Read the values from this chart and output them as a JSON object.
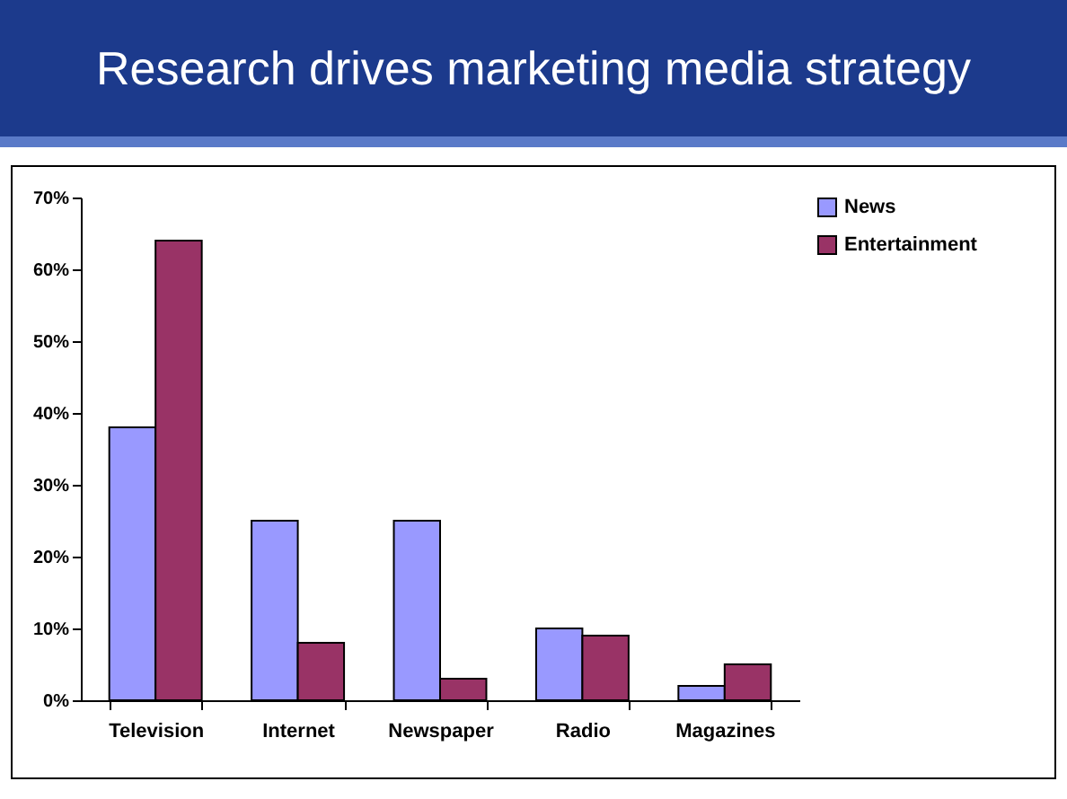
{
  "chart_data": {
    "type": "bar",
    "title": "Research drives marketing media strategy",
    "categories": [
      "Television",
      "Internet",
      "Newspaper",
      "Radio",
      "Magazines"
    ],
    "series": [
      {
        "name": "News",
        "color": "#9999ff",
        "values": [
          38,
          25,
          25,
          10,
          2
        ]
      },
      {
        "name": "Entertainment",
        "color": "#993366",
        "values": [
          64,
          8,
          3,
          9,
          5
        ]
      }
    ],
    "ylim": [
      0,
      70
    ],
    "yticks": [
      {
        "value": 0,
        "label": "0%"
      },
      {
        "value": 10,
        "label": "10%"
      },
      {
        "value": 20,
        "label": "20%"
      },
      {
        "value": 30,
        "label": "30%"
      },
      {
        "value": 40,
        "label": "40%"
      },
      {
        "value": 50,
        "label": "50%"
      },
      {
        "value": 60,
        "label": "60%"
      },
      {
        "value": 70,
        "label": "70%"
      }
    ],
    "grid": false,
    "legend": "right"
  }
}
